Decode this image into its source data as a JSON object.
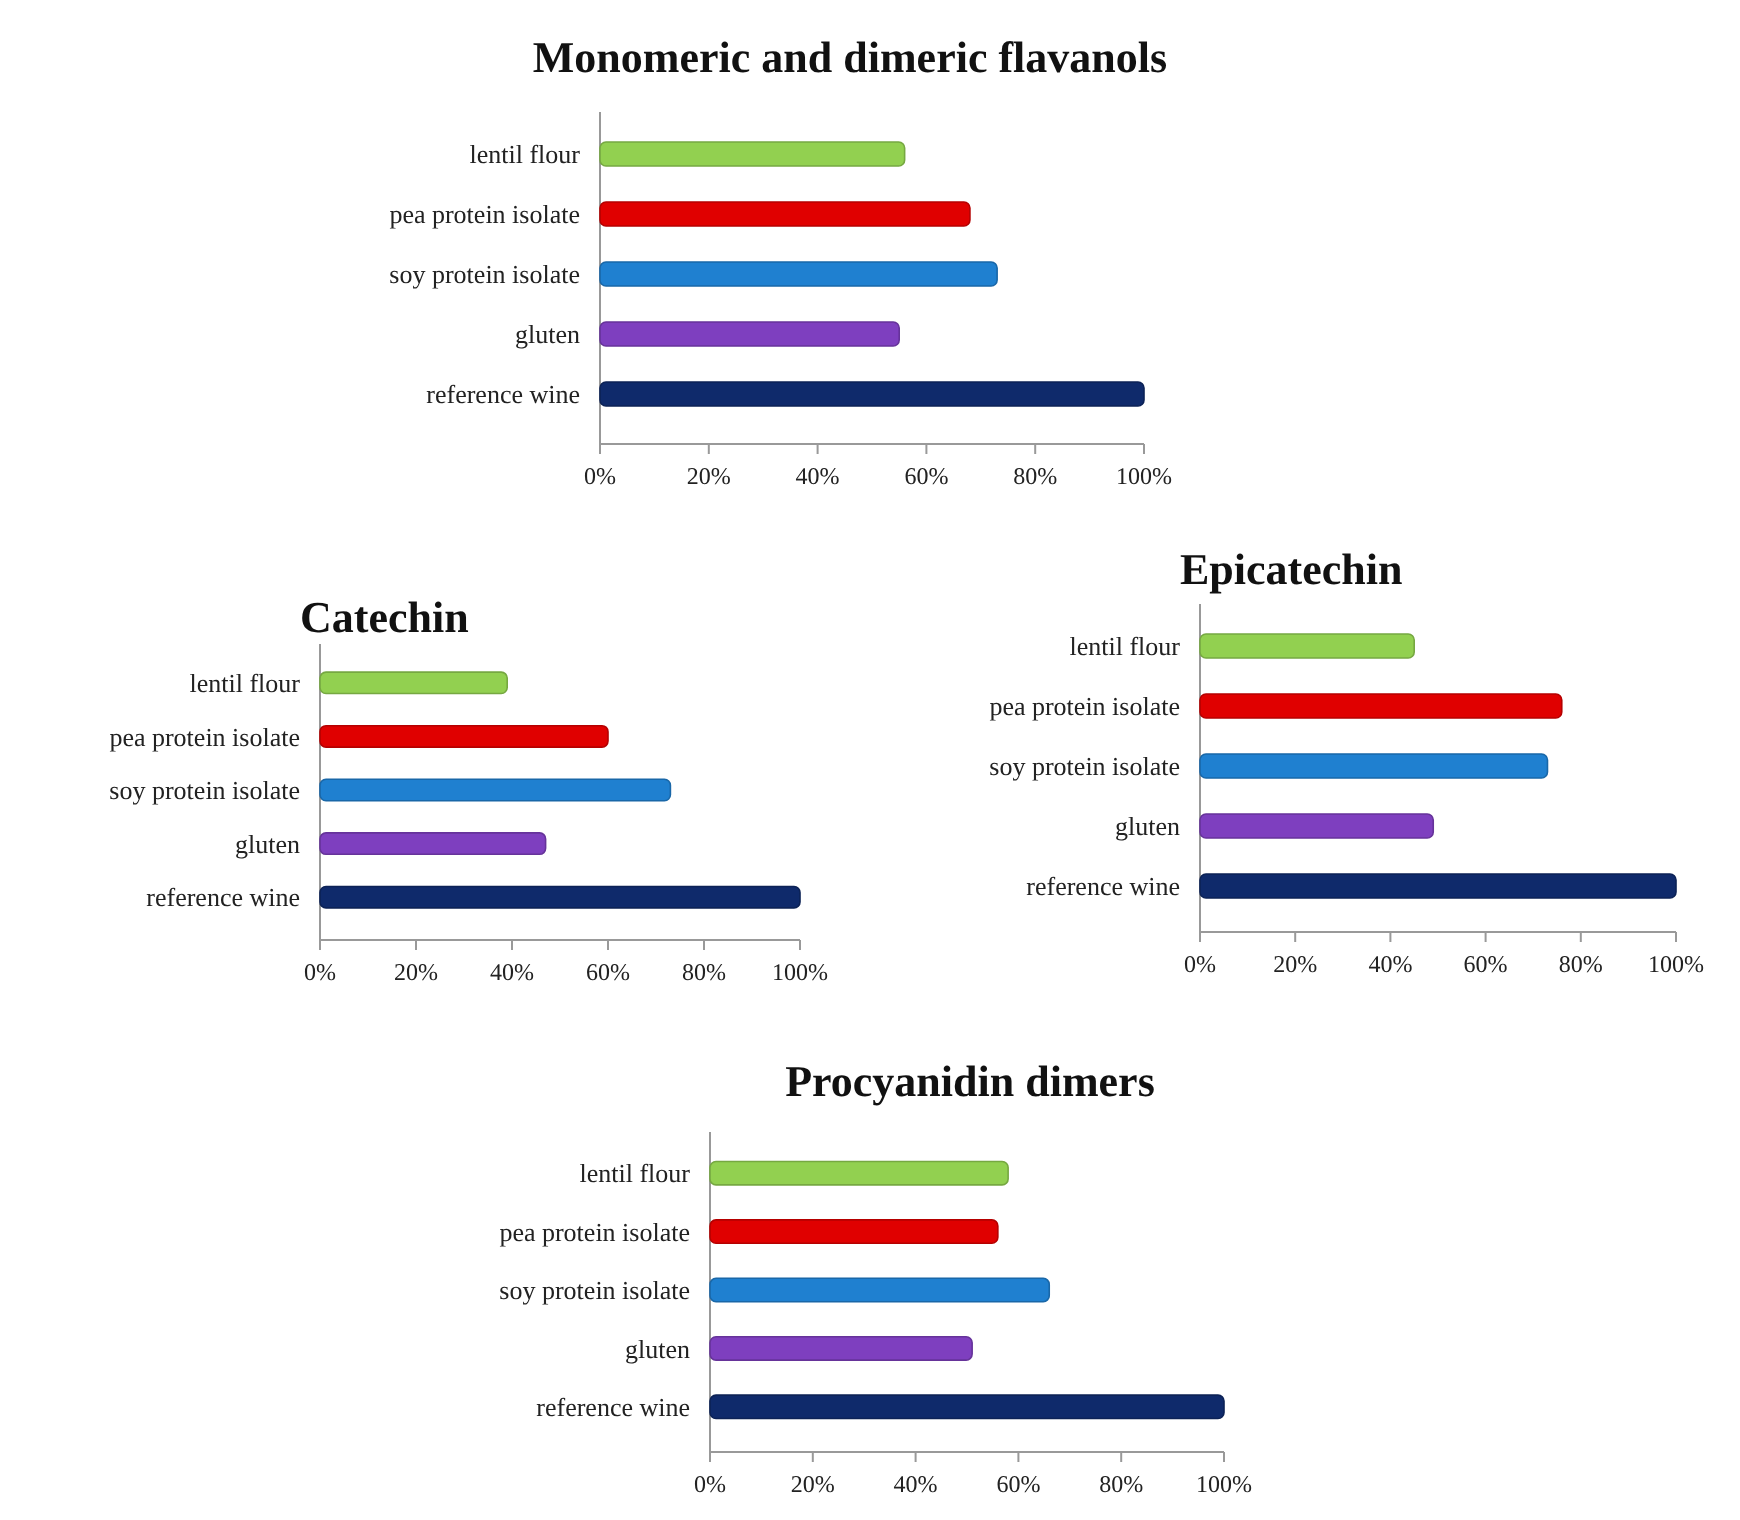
{
  "chart_data": [
    {
      "type": "bar",
      "orientation": "horizontal",
      "title": "Monomeric and dimeric flavanols",
      "categories": [
        "lentil flour",
        "pea protein isolate",
        "soy protein isolate",
        "gluten",
        "reference wine"
      ],
      "values": [
        56,
        68,
        73,
        55,
        100
      ],
      "colors": [
        "#92d050",
        "#e00000",
        "#1f80d0",
        "#7e3fbf",
        "#0f2a6b"
      ],
      "xlim": [
        0,
        100
      ],
      "xticks": [
        {
          "value": 0,
          "label": "0%"
        },
        {
          "value": 20,
          "label": "20%"
        },
        {
          "value": 40,
          "label": "40%"
        },
        {
          "value": 60,
          "label": "60%"
        },
        {
          "value": 80,
          "label": "80%"
        },
        {
          "value": 100,
          "label": "100%"
        }
      ]
    },
    {
      "type": "bar",
      "orientation": "horizontal",
      "title": "Catechin",
      "categories": [
        "lentil flour",
        "pea protein isolate",
        "soy protein isolate",
        "gluten",
        "reference wine"
      ],
      "values": [
        39,
        60,
        73,
        47,
        100
      ],
      "colors": [
        "#92d050",
        "#e00000",
        "#1f80d0",
        "#7e3fbf",
        "#0f2a6b"
      ],
      "xlim": [
        0,
        100
      ],
      "xticks": [
        {
          "value": 0,
          "label": "0%"
        },
        {
          "value": 20,
          "label": "20%"
        },
        {
          "value": 40,
          "label": "40%"
        },
        {
          "value": 60,
          "label": "60%"
        },
        {
          "value": 80,
          "label": "80%"
        },
        {
          "value": 100,
          "label": "100%"
        }
      ]
    },
    {
      "type": "bar",
      "orientation": "horizontal",
      "title": "Epicatechin",
      "categories": [
        "lentil flour",
        "pea protein isolate",
        "soy protein isolate",
        "gluten",
        "reference wine"
      ],
      "values": [
        45,
        76,
        73,
        49,
        100
      ],
      "colors": [
        "#92d050",
        "#e00000",
        "#1f80d0",
        "#7e3fbf",
        "#0f2a6b"
      ],
      "xlim": [
        0,
        100
      ],
      "xticks": [
        {
          "value": 0,
          "label": "0%"
        },
        {
          "value": 20,
          "label": "20%"
        },
        {
          "value": 40,
          "label": "40%"
        },
        {
          "value": 60,
          "label": "60%"
        },
        {
          "value": 80,
          "label": "80%"
        },
        {
          "value": 100,
          "label": "100%"
        }
      ]
    },
    {
      "type": "bar",
      "orientation": "horizontal",
      "title": "Procyanidin dimers",
      "categories": [
        "lentil flour",
        "pea protein isolate",
        "soy protein isolate",
        "gluten",
        "reference wine"
      ],
      "values": [
        58,
        56,
        66,
        51,
        100
      ],
      "colors": [
        "#92d050",
        "#e00000",
        "#1f80d0",
        "#7e3fbf",
        "#0f2a6b"
      ],
      "xlim": [
        0,
        100
      ],
      "xticks": [
        {
          "value": 0,
          "label": "0%"
        },
        {
          "value": 20,
          "label": "20%"
        },
        {
          "value": 40,
          "label": "40%"
        },
        {
          "value": 60,
          "label": "60%"
        },
        {
          "value": 80,
          "label": "80%"
        },
        {
          "value": 100,
          "label": "100%"
        }
      ]
    }
  ]
}
